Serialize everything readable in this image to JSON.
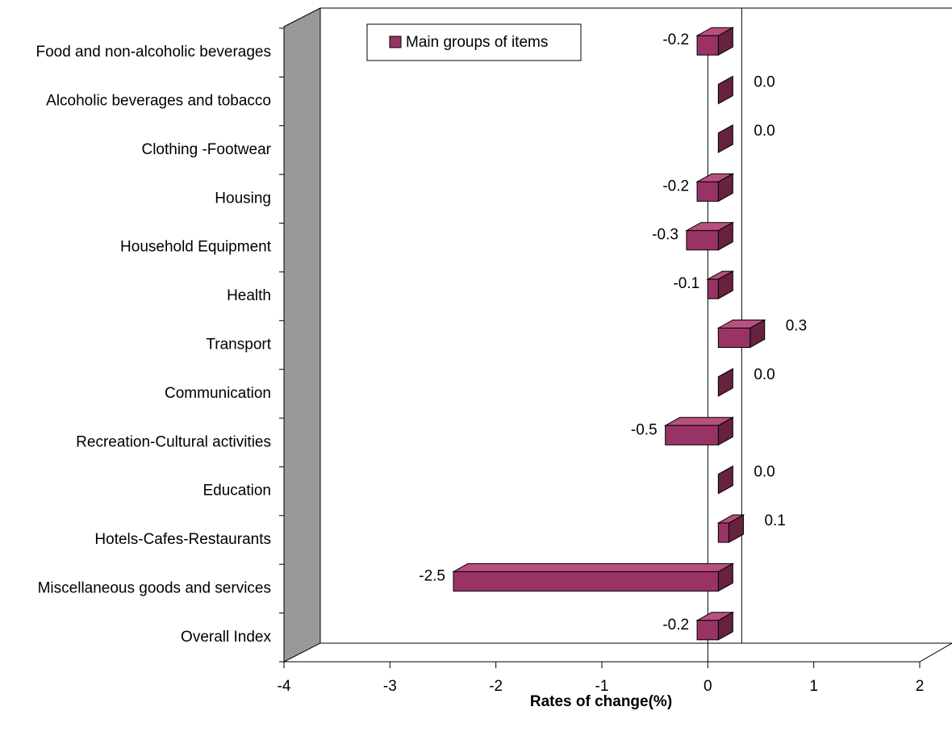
{
  "chart_data": {
    "type": "bar",
    "orientation": "horizontal",
    "categories": [
      "Food and non-alcoholic beverages",
      "Alcoholic beverages and tobacco",
      "Clothing -Footwear",
      "Housing",
      "Household Equipment",
      "Health",
      "Transport",
      "Communication",
      "Recreation-Cultural activities",
      "Education",
      "Hotels-Cafes-Restaurants",
      "Miscellaneous goods and services",
      "Overall Index"
    ],
    "series": [
      {
        "name": "Main groups of items",
        "color": "#993366",
        "values": [
          -0.2,
          0,
          0,
          -0.2,
          -0.3,
          -0.1,
          0.3,
          0,
          -0.5,
          0,
          0.1,
          -2.5,
          -0.2
        ],
        "value_labels": [
          "-0.2",
          "0.0",
          "0.0",
          "-0.2",
          "-0.3",
          "-0.1",
          "0.3",
          "0.0",
          "-0.5",
          "0.0",
          "0.1",
          "-2.5",
          "-0.2"
        ]
      }
    ],
    "xlabel": "Rates of change(%)",
    "xlim": [
      -4,
      2
    ],
    "xticks": [
      -4,
      -3,
      -2,
      -1,
      0,
      1,
      2
    ],
    "legend": "top"
  }
}
